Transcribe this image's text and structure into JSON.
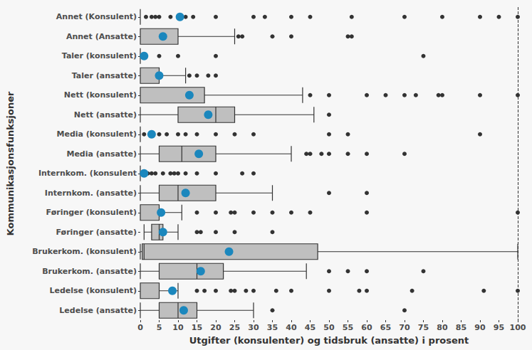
{
  "chart_data": {
    "type": "boxplot",
    "orientation": "horizontal",
    "x_label": "Utgifter (konsulenter) og tidsbruk (ansatte) i prosent",
    "y_label": "Kommunikasjonsfunksjoner",
    "categories": [
      "Annet (Konsulent)",
      "Annet (Ansatte)",
      "Taler (konsulent)",
      "Taler (ansatte)",
      "Nett (konsulent)",
      "Nett (ansatte)",
      "Media (konsulent)",
      "Media (ansatte)",
      "Internkom. (konsulent",
      "Internkom. (ansatte)",
      "Føringer (konsulent)",
      "Føringer (ansatte)",
      "Brukerkom. (konsulent)",
      "Brukerkom. (ansatte)",
      "Ledelse (konsulent)",
      "Ledelse (ansatte)"
    ],
    "series": [
      {
        "type": "boxplot",
        "color": "#bfbfbf",
        "values": [
          [
            0,
            0,
            0,
            0,
            0
          ],
          [
            0,
            0,
            0,
            10,
            25
          ],
          [
            0,
            0,
            0,
            0,
            0
          ],
          [
            0,
            0,
            0,
            5,
            12
          ],
          [
            0,
            0,
            0,
            17,
            43
          ],
          [
            0,
            10,
            20,
            25,
            46
          ],
          [
            0,
            0,
            0,
            0,
            0
          ],
          [
            0,
            5,
            11,
            20,
            40
          ],
          [
            0,
            0,
            0,
            0,
            0
          ],
          [
            0,
            5,
            10,
            20,
            35
          ],
          [
            0,
            0,
            0,
            5,
            11
          ],
          [
            1,
            3,
            5,
            6,
            10
          ],
          [
            0,
            0.5,
            1,
            47,
            100
          ],
          [
            0,
            5,
            15,
            22,
            44
          ],
          [
            0,
            0,
            0,
            5,
            10
          ],
          [
            0,
            5,
            10,
            15,
            30
          ]
        ]
      },
      {
        "type": "scatter",
        "marker": "circle",
        "color": "#333333",
        "values": [
          [
            1.5,
            3,
            4,
            5,
            8,
            10,
            12,
            14,
            20,
            30,
            33,
            40,
            45,
            56,
            70,
            80,
            90,
            95,
            100
          ],
          [
            26,
            27,
            35,
            40,
            55,
            56
          ],
          [
            1,
            5,
            10,
            20,
            75
          ],
          [
            13,
            15,
            18,
            20
          ],
          [
            45,
            50,
            60,
            65,
            70,
            73,
            79,
            80,
            90,
            100
          ],
          [
            50
          ],
          [
            1,
            3,
            5,
            7,
            10,
            12,
            15,
            20,
            25,
            30,
            50,
            55,
            90
          ],
          [
            44,
            45,
            48,
            50,
            55,
            60,
            70
          ],
          [
            2,
            3,
            4,
            6,
            8,
            9,
            10,
            12,
            15,
            20,
            27,
            30
          ],
          [
            50,
            60
          ],
          [
            15,
            20,
            24,
            25,
            30,
            35,
            40,
            45,
            60,
            100
          ],
          [
            15,
            16,
            20,
            25,
            35
          ],
          [],
          [
            50,
            55,
            60,
            75
          ],
          [
            15,
            17,
            20,
            24,
            25,
            28,
            30,
            36,
            40,
            50,
            58,
            60,
            72,
            91,
            100
          ],
          [
            35,
            70
          ]
        ]
      },
      {
        "type": "scatter",
        "marker": "circle",
        "color": "#1b87bd",
        "values": [
          10.5,
          6,
          1,
          5,
          13,
          18,
          3,
          15.5,
          1,
          12,
          5.5,
          6,
          23.5,
          16,
          8.5,
          11.5
        ]
      }
    ],
    "reference_line": {
      "x": 100,
      "line_style": "dashed"
    },
    "xlim": [
      0,
      100
    ],
    "xticks": [
      0,
      5,
      10,
      15,
      20,
      25,
      30,
      35,
      40,
      45,
      50,
      55,
      60,
      65,
      70,
      75,
      80,
      85,
      90,
      95,
      100
    ],
    "grid": false
  }
}
